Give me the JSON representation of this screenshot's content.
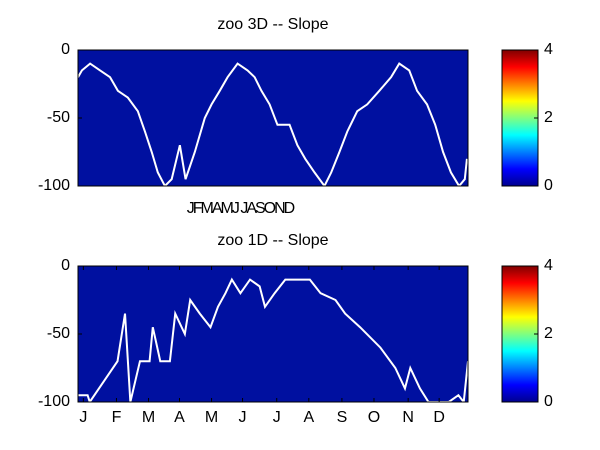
{
  "chart_data": [
    {
      "type": "heatmap-line",
      "title": "zoo 3D   -- Slope",
      "annotation": "JFMAMJ JASOND",
      "field_color": "#0010a0",
      "line_color": "#ffffff",
      "x": [
        0,
        11,
        34,
        62,
        90,
        112,
        140,
        168,
        188,
        207,
        224,
        244,
        263,
        286,
        302,
        328,
        356,
        375,
        398,
        420,
        448,
        476,
        496,
        515,
        538,
        560,
        594,
        616,
        638,
        664,
        692,
        711,
        734,
        756,
        784,
        812,
        846,
        879,
        902,
        930,
        952,
        980,
        1003,
        1025,
        1047,
        1070,
        1086,
        1092
      ],
      "values": [
        -20,
        -15,
        -10,
        -15,
        -20,
        -30,
        -35,
        -45,
        -60,
        -75,
        -90,
        -100,
        -95,
        -70,
        -95,
        -75,
        -50,
        -40,
        -30,
        -20,
        -10,
        -15,
        -20,
        -30,
        -40,
        -55,
        -55,
        -70,
        -80,
        -90,
        -100,
        -90,
        -75,
        -60,
        -45,
        -40,
        -30,
        -20,
        -10,
        -15,
        -30,
        -40,
        -55,
        -75,
        -90,
        -100,
        -95,
        -80
      ],
      "xlim": [
        0,
        1095
      ],
      "ylim": [
        -100,
        0
      ],
      "yticks": [
        0,
        -50,
        -100
      ],
      "colorbar": {
        "colormap": "jet",
        "clim": [
          0,
          4
        ],
        "ticks": [
          0,
          2,
          4
        ]
      }
    },
    {
      "type": "heatmap-line",
      "title": "zoo 1D   -- Slope",
      "field_color": "#0010a0",
      "line_color": "#ffffff",
      "x": [
        0,
        9,
        11,
        37,
        44,
        49,
        58,
        67,
        70,
        77,
        86,
        91,
        100,
        105,
        114,
        124,
        131,
        138,
        144,
        152,
        161,
        170,
        175,
        184,
        194,
        217,
        227,
        241,
        250,
        264,
        283,
        297,
        306,
        311,
        320,
        328,
        347,
        356,
        361,
        365
      ],
      "values": [
        -95,
        -95,
        -100,
        -70,
        -35,
        -100,
        -70,
        -70,
        -45,
        -70,
        -70,
        -35,
        -50,
        -25,
        -35,
        -45,
        -30,
        -20,
        -10,
        -20,
        -10,
        -15,
        -30,
        -20,
        -10,
        -10,
        -20,
        -25,
        -35,
        -45,
        -60,
        -75,
        -90,
        -75,
        -90,
        -100,
        -100,
        -95,
        -100,
        -70
      ],
      "xlim": [
        0,
        365
      ],
      "ylim": [
        -100,
        0
      ],
      "yticks": [
        0,
        -50,
        -100
      ],
      "xticks": [
        {
          "value": 5,
          "label": "J"
        },
        {
          "value": 36,
          "label": "F"
        },
        {
          "value": 66,
          "label": "M"
        },
        {
          "value": 95,
          "label": "A"
        },
        {
          "value": 125,
          "label": "M"
        },
        {
          "value": 154,
          "label": "J"
        },
        {
          "value": 186,
          "label": "J"
        },
        {
          "value": 216,
          "label": "A"
        },
        {
          "value": 247,
          "label": "S"
        },
        {
          "value": 277,
          "label": "O"
        },
        {
          "value": 309,
          "label": "N"
        },
        {
          "value": 338,
          "label": "D"
        }
      ],
      "colorbar": {
        "colormap": "jet",
        "clim": [
          0,
          4
        ],
        "ticks": [
          0,
          2,
          4
        ]
      }
    }
  ]
}
